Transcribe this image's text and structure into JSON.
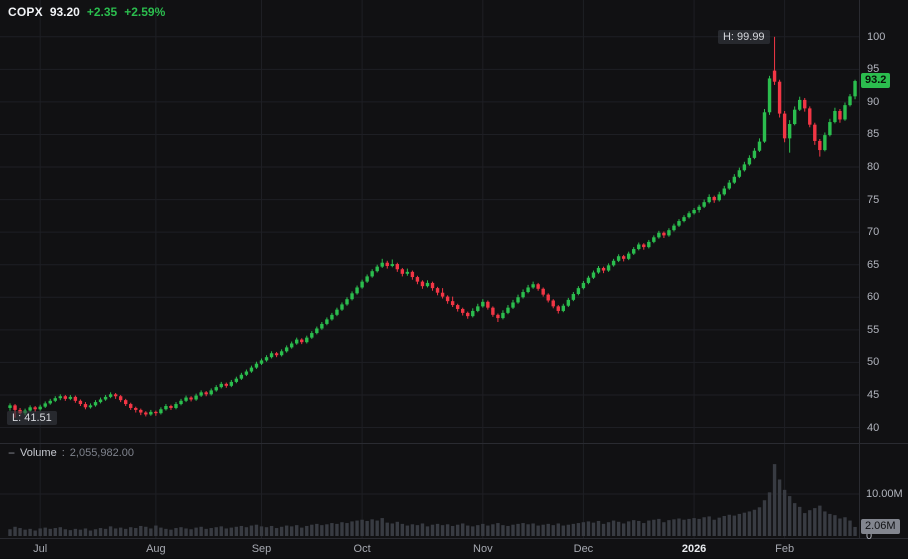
{
  "legend": {
    "symbol": "COPX",
    "price": "93.20",
    "change": "+2.35",
    "change_pct": "+2.59%"
  },
  "volume_legend": {
    "toggle": "−",
    "title": "Volume",
    "colon": ":",
    "value": "2,055,982.00"
  },
  "markers": {
    "high": "H: 99.99",
    "low": "L: 41.51"
  },
  "badges": {
    "price": "93.2",
    "volume": "2.06M"
  },
  "colors": {
    "bg": "#111113",
    "grid": "#1e1f24",
    "separator": "#2a2b31",
    "up": "#2bbd4e",
    "down": "#f23645",
    "volume": "#383b42",
    "axis_text": "#b2b5be"
  },
  "chart_data": {
    "type": "candlestick",
    "symbol": "COPX",
    "last_close": 93.2,
    "change": 2.35,
    "change_pct": 2.59,
    "period_high": 99.99,
    "period_low": 41.51,
    "current_volume": 2055982,
    "price_axis": {
      "min": 40,
      "max": 100,
      "step": 5,
      "side": "right",
      "labels": [
        100,
        95,
        90,
        85,
        80,
        75,
        70,
        65,
        60,
        55,
        50,
        45,
        40
      ]
    },
    "volume_axis": {
      "tick_label": "10.00M",
      "zero_label": "0",
      "tick_value_millions": 10,
      "current_label": "2.06M"
    },
    "x_ticks": [
      {
        "label": "Jul",
        "i": 6
      },
      {
        "label": "Aug",
        "i": 29
      },
      {
        "label": "Sep",
        "i": 50
      },
      {
        "label": "Oct",
        "i": 70
      },
      {
        "label": "Nov",
        "i": 94
      },
      {
        "label": "Dec",
        "i": 114
      },
      {
        "label": "2026",
        "i": 136,
        "major": true
      },
      {
        "label": "Feb",
        "i": 154
      }
    ],
    "candles": {
      "format": [
        "open",
        "high",
        "low",
        "close",
        "volume_millions"
      ],
      "values": [
        [
          43.0,
          43.7,
          42.6,
          43.4,
          1.5
        ],
        [
          43.4,
          43.6,
          41.51,
          42.7,
          2.1
        ],
        [
          42.7,
          43.0,
          42.0,
          42.2,
          1.8
        ],
        [
          42.2,
          42.9,
          41.9,
          42.6,
          1.4
        ],
        [
          42.6,
          43.4,
          42.4,
          43.1,
          1.6
        ],
        [
          43.1,
          43.3,
          42.4,
          42.8,
          1.2
        ],
        [
          42.8,
          43.5,
          42.6,
          43.2,
          1.7
        ],
        [
          43.2,
          44.0,
          43.0,
          43.7,
          1.9
        ],
        [
          43.7,
          44.4,
          43.5,
          44.1,
          1.6
        ],
        [
          44.1,
          44.8,
          43.9,
          44.5,
          1.8
        ],
        [
          44.5,
          45.1,
          44.2,
          44.8,
          2.0
        ],
        [
          44.8,
          45.0,
          44.1,
          44.4,
          1.5
        ],
        [
          44.4,
          45.0,
          44.2,
          44.7,
          1.3
        ],
        [
          44.7,
          44.9,
          43.8,
          44.1,
          1.6
        ],
        [
          44.1,
          44.3,
          43.3,
          43.6,
          1.4
        ],
        [
          43.6,
          43.9,
          42.8,
          43.1,
          1.7
        ],
        [
          43.1,
          43.7,
          42.9,
          43.4,
          1.2
        ],
        [
          43.4,
          44.2,
          43.2,
          43.9,
          1.5
        ],
        [
          43.9,
          44.6,
          43.7,
          44.3,
          1.8
        ],
        [
          44.3,
          45.0,
          44.1,
          44.7,
          1.6
        ],
        [
          44.7,
          45.4,
          44.5,
          45.1,
          2.2
        ],
        [
          45.1,
          45.3,
          44.4,
          44.8,
          1.7
        ],
        [
          44.8,
          45.0,
          43.9,
          44.2,
          1.9
        ],
        [
          44.2,
          44.4,
          43.3,
          43.6,
          1.6
        ],
        [
          43.6,
          43.8,
          42.7,
          43.0,
          2.0
        ],
        [
          43.0,
          43.2,
          42.3,
          42.7,
          1.8
        ],
        [
          42.7,
          42.9,
          41.9,
          42.3,
          2.3
        ],
        [
          42.3,
          42.5,
          41.7,
          42.0,
          2.1
        ],
        [
          42.0,
          42.7,
          41.8,
          42.4,
          1.7
        ],
        [
          42.4,
          42.6,
          41.8,
          42.2,
          2.4
        ],
        [
          42.2,
          43.1,
          42.0,
          42.8,
          1.9
        ],
        [
          42.8,
          43.6,
          42.6,
          43.3,
          1.6
        ],
        [
          43.3,
          43.5,
          42.7,
          43.0,
          1.4
        ],
        [
          43.0,
          43.9,
          42.8,
          43.6,
          1.8
        ],
        [
          43.6,
          44.4,
          43.4,
          44.1,
          2.0
        ],
        [
          44.1,
          44.9,
          43.9,
          44.6,
          1.7
        ],
        [
          44.6,
          44.8,
          44.0,
          44.3,
          1.5
        ],
        [
          44.3,
          45.2,
          44.1,
          44.9,
          1.9
        ],
        [
          44.9,
          45.7,
          44.7,
          45.4,
          2.1
        ],
        [
          45.4,
          45.6,
          44.8,
          45.1,
          1.6
        ],
        [
          45.1,
          46.0,
          44.9,
          45.7,
          1.8
        ],
        [
          45.7,
          46.5,
          45.5,
          46.2,
          2.0
        ],
        [
          46.2,
          47.0,
          46.0,
          46.7,
          2.2
        ],
        [
          46.7,
          46.9,
          46.1,
          46.4,
          1.7
        ],
        [
          46.4,
          47.3,
          46.2,
          47.0,
          1.9
        ],
        [
          47.0,
          47.8,
          46.8,
          47.5,
          2.1
        ],
        [
          47.5,
          48.4,
          47.3,
          48.1,
          2.3
        ],
        [
          48.1,
          48.9,
          47.9,
          48.6,
          2.0
        ],
        [
          48.6,
          49.5,
          48.4,
          49.2,
          2.4
        ],
        [
          49.2,
          50.1,
          49.0,
          49.8,
          2.6
        ],
        [
          49.8,
          50.6,
          49.6,
          50.3,
          2.2
        ],
        [
          50.3,
          51.1,
          50.1,
          50.8,
          2.0
        ],
        [
          50.8,
          51.7,
          50.6,
          51.4,
          2.3
        ],
        [
          51.4,
          51.6,
          50.8,
          51.1,
          1.8
        ],
        [
          51.1,
          52.0,
          50.9,
          51.7,
          2.1
        ],
        [
          51.7,
          52.6,
          51.5,
          52.3,
          2.4
        ],
        [
          52.3,
          53.2,
          52.1,
          52.9,
          2.2
        ],
        [
          52.9,
          53.8,
          52.7,
          53.5,
          2.5
        ],
        [
          53.5,
          53.7,
          52.8,
          53.1,
          1.9
        ],
        [
          53.1,
          54.1,
          52.9,
          53.8,
          2.3
        ],
        [
          53.8,
          54.8,
          53.6,
          54.5,
          2.6
        ],
        [
          54.5,
          55.5,
          54.3,
          55.2,
          2.8
        ],
        [
          55.2,
          56.2,
          55.0,
          55.9,
          2.5
        ],
        [
          55.9,
          56.9,
          55.7,
          56.6,
          2.7
        ],
        [
          56.6,
          57.6,
          56.4,
          57.3,
          3.0
        ],
        [
          57.3,
          58.4,
          57.1,
          58.1,
          2.8
        ],
        [
          58.1,
          59.2,
          57.9,
          58.9,
          3.2
        ],
        [
          58.9,
          60.0,
          58.7,
          59.7,
          3.0
        ],
        [
          59.7,
          60.9,
          59.5,
          60.6,
          3.4
        ],
        [
          60.6,
          61.8,
          60.4,
          61.5,
          3.6
        ],
        [
          61.5,
          62.7,
          61.3,
          62.4,
          3.8
        ],
        [
          62.4,
          63.5,
          62.2,
          63.2,
          3.5
        ],
        [
          63.2,
          64.3,
          63.0,
          64.0,
          3.9
        ],
        [
          64.0,
          65.0,
          63.8,
          64.7,
          3.6
        ],
        [
          64.7,
          65.9,
          64.5,
          65.3,
          4.2
        ],
        [
          65.3,
          65.6,
          64.4,
          64.8,
          3.1
        ],
        [
          64.8,
          65.8,
          64.6,
          65.1,
          2.9
        ],
        [
          65.1,
          65.3,
          63.9,
          64.3,
          3.3
        ],
        [
          64.3,
          64.5,
          63.2,
          63.6,
          2.8
        ],
        [
          63.6,
          64.4,
          63.3,
          63.9,
          2.4
        ],
        [
          63.9,
          64.1,
          62.7,
          63.1,
          2.7
        ],
        [
          63.1,
          63.3,
          62.0,
          62.4,
          2.5
        ],
        [
          62.4,
          62.6,
          61.3,
          61.7,
          2.9
        ],
        [
          61.7,
          62.6,
          61.5,
          62.2,
          2.2
        ],
        [
          62.2,
          62.4,
          61.0,
          61.4,
          2.6
        ],
        [
          61.4,
          61.6,
          60.3,
          60.7,
          2.8
        ],
        [
          60.7,
          61.4,
          59.8,
          60.1,
          2.5
        ],
        [
          60.1,
          60.3,
          59.0,
          59.4,
          2.7
        ],
        [
          59.4,
          60.1,
          58.5,
          58.8,
          2.3
        ],
        [
          58.8,
          59.0,
          57.8,
          58.2,
          2.6
        ],
        [
          58.2,
          58.4,
          57.2,
          57.6,
          2.9
        ],
        [
          57.6,
          57.8,
          56.7,
          57.1,
          2.4
        ],
        [
          57.1,
          58.3,
          56.9,
          57.9,
          2.2
        ],
        [
          57.9,
          59.0,
          57.7,
          58.6,
          2.5
        ],
        [
          58.6,
          59.7,
          58.4,
          59.3,
          2.8
        ],
        [
          59.3,
          59.5,
          58.1,
          58.4,
          2.4
        ],
        [
          58.4,
          58.6,
          57.0,
          57.3,
          2.7
        ],
        [
          57.3,
          57.5,
          56.2,
          56.8,
          3.0
        ],
        [
          56.8,
          58.0,
          56.6,
          57.6,
          2.5
        ],
        [
          57.6,
          58.8,
          57.4,
          58.4,
          2.3
        ],
        [
          58.4,
          59.6,
          58.2,
          59.2,
          2.6
        ],
        [
          59.2,
          60.4,
          59.0,
          60.0,
          2.8
        ],
        [
          60.0,
          61.2,
          59.8,
          60.8,
          3.0
        ],
        [
          60.8,
          61.9,
          60.6,
          61.5,
          2.7
        ],
        [
          61.5,
          62.4,
          61.3,
          62.0,
          2.9
        ],
        [
          62.0,
          62.2,
          61.0,
          61.3,
          2.4
        ],
        [
          61.3,
          61.5,
          60.1,
          60.4,
          2.6
        ],
        [
          60.4,
          60.6,
          59.2,
          59.5,
          2.8
        ],
        [
          59.5,
          59.7,
          58.3,
          58.6,
          2.5
        ],
        [
          58.6,
          58.8,
          57.5,
          57.9,
          2.9
        ],
        [
          57.9,
          59.0,
          57.7,
          58.7,
          2.4
        ],
        [
          58.7,
          59.9,
          58.5,
          59.6,
          2.6
        ],
        [
          59.6,
          60.8,
          59.4,
          60.5,
          2.8
        ],
        [
          60.5,
          61.7,
          60.3,
          61.4,
          3.0
        ],
        [
          61.4,
          62.5,
          61.2,
          62.2,
          3.2
        ],
        [
          62.2,
          63.3,
          62.0,
          63.0,
          3.4
        ],
        [
          63.0,
          64.1,
          62.8,
          63.8,
          3.1
        ],
        [
          63.8,
          64.8,
          63.6,
          64.5,
          3.5
        ],
        [
          64.5,
          64.7,
          63.7,
          64.1,
          2.8
        ],
        [
          64.1,
          65.2,
          63.9,
          64.9,
          3.2
        ],
        [
          64.9,
          65.9,
          64.7,
          65.6,
          3.6
        ],
        [
          65.6,
          66.6,
          65.4,
          66.3,
          3.3
        ],
        [
          66.3,
          66.5,
          65.5,
          65.9,
          2.9
        ],
        [
          65.9,
          67.0,
          65.7,
          66.7,
          3.4
        ],
        [
          66.7,
          67.7,
          66.5,
          67.4,
          3.7
        ],
        [
          67.4,
          68.4,
          67.2,
          68.1,
          3.5
        ],
        [
          68.1,
          68.3,
          67.3,
          67.7,
          3.0
        ],
        [
          67.7,
          68.8,
          67.5,
          68.5,
          3.6
        ],
        [
          68.5,
          69.5,
          68.3,
          69.2,
          3.8
        ],
        [
          69.2,
          70.2,
          69.0,
          69.9,
          4.0
        ],
        [
          69.9,
          70.1,
          69.1,
          69.5,
          3.2
        ],
        [
          69.5,
          70.6,
          69.3,
          70.3,
          3.7
        ],
        [
          70.3,
          71.3,
          70.1,
          71.0,
          3.9
        ],
        [
          71.0,
          72.0,
          70.8,
          71.7,
          4.1
        ],
        [
          71.7,
          72.6,
          71.5,
          72.3,
          3.8
        ],
        [
          72.3,
          73.2,
          72.1,
          72.9,
          4.0
        ],
        [
          72.9,
          73.7,
          72.7,
          73.4,
          4.2
        ],
        [
          73.4,
          74.2,
          73.0,
          73.9,
          4.0
        ],
        [
          73.9,
          75.0,
          73.7,
          74.6,
          4.4
        ],
        [
          74.6,
          75.8,
          74.4,
          75.4,
          4.6
        ],
        [
          75.4,
          75.6,
          74.5,
          74.9,
          3.8
        ],
        [
          74.9,
          76.2,
          74.7,
          75.8,
          4.3
        ],
        [
          75.8,
          77.1,
          75.6,
          76.7,
          4.7
        ],
        [
          76.7,
          78.0,
          76.5,
          77.6,
          5.0
        ],
        [
          77.6,
          78.9,
          77.4,
          78.5,
          4.8
        ],
        [
          78.5,
          79.9,
          78.3,
          79.5,
          5.2
        ],
        [
          79.5,
          80.8,
          79.3,
          80.4,
          5.5
        ],
        [
          80.4,
          81.8,
          80.2,
          81.4,
          5.8
        ],
        [
          81.4,
          82.9,
          81.2,
          82.5,
          6.2
        ],
        [
          82.5,
          84.4,
          82.3,
          83.9,
          6.8
        ],
        [
          83.9,
          88.9,
          83.7,
          88.4,
          8.5
        ],
        [
          88.4,
          94.0,
          88.0,
          93.6,
          10.4
        ],
        [
          94.8,
          99.99,
          92.6,
          93.1,
          17.2
        ],
        [
          93.1,
          93.4,
          87.6,
          88.2,
          13.5
        ],
        [
          88.2,
          88.6,
          83.8,
          84.4,
          11.0
        ],
        [
          84.4,
          87.2,
          82.2,
          86.6,
          9.5
        ],
        [
          86.6,
          89.3,
          86.4,
          88.8,
          7.8
        ],
        [
          88.8,
          90.8,
          88.6,
          90.3,
          6.9
        ],
        [
          90.3,
          90.6,
          88.5,
          89.0,
          5.4
        ],
        [
          89.0,
          89.3,
          86.1,
          86.5,
          6.1
        ],
        [
          86.5,
          86.8,
          83.4,
          84.0,
          6.6
        ],
        [
          84.0,
          84.3,
          81.6,
          82.6,
          7.2
        ],
        [
          82.6,
          85.3,
          82.4,
          84.9,
          5.8
        ],
        [
          84.9,
          87.4,
          84.7,
          86.9,
          5.2
        ],
        [
          86.9,
          89.1,
          86.7,
          88.6,
          4.9
        ],
        [
          88.6,
          88.9,
          86.8,
          87.3,
          4.1
        ],
        [
          87.3,
          89.9,
          87.1,
          89.5,
          4.4
        ],
        [
          89.5,
          91.2,
          89.3,
          90.85,
          3.6
        ],
        [
          90.85,
          93.4,
          90.4,
          93.2,
          2.06
        ]
      ]
    }
  }
}
